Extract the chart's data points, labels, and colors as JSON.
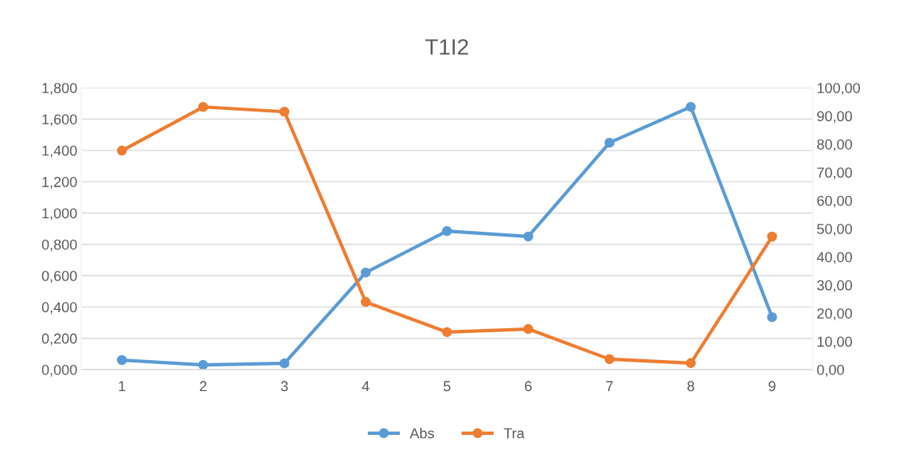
{
  "chart_data": {
    "type": "line",
    "title": "T1I2",
    "categories": [
      "1",
      "2",
      "3",
      "4",
      "5",
      "6",
      "7",
      "8",
      "9"
    ],
    "series": [
      {
        "name": "Abs",
        "color": "#5b9bd5",
        "values": [
          0.061,
          0.03,
          0.04,
          0.62,
          0.885,
          0.85,
          1.449,
          1.678,
          0.335
        ]
      },
      {
        "name": "Tra",
        "color": "#ed7d31",
        "axis": "y2",
        "values": [
          77.7,
          93.2,
          91.5,
          24.0,
          13.3,
          14.4,
          3.7,
          2.3,
          47.2
        ]
      }
    ],
    "ylim": [
      0,
      1.8
    ],
    "yticks": [
      {
        "value": 0,
        "label": "0,000"
      },
      {
        "value": 0.2,
        "label": "0,200"
      },
      {
        "value": 0.4,
        "label": "0,400"
      },
      {
        "value": 0.6,
        "label": "0,600"
      },
      {
        "value": 0.8,
        "label": "0,800"
      },
      {
        "value": 1.0,
        "label": "1,000"
      },
      {
        "value": 1.2,
        "label": "1,200"
      },
      {
        "value": 1.4,
        "label": "1,400"
      },
      {
        "value": 1.6,
        "label": "1,600"
      },
      {
        "value": 1.8,
        "label": "1,800"
      }
    ],
    "y2lim": [
      0,
      100
    ],
    "y2ticks": [
      {
        "value": 0,
        "label": "0,00"
      },
      {
        "value": 10,
        "label": "10,00"
      },
      {
        "value": 20,
        "label": "20,00"
      },
      {
        "value": 30,
        "label": "30,00"
      },
      {
        "value": 40,
        "label": "40,00"
      },
      {
        "value": 50,
        "label": "50,00"
      },
      {
        "value": 60,
        "label": "60,00"
      },
      {
        "value": 70,
        "label": "70,00"
      },
      {
        "value": 80,
        "label": "80,00"
      },
      {
        "value": 90,
        "label": "90,00"
      },
      {
        "value": 100,
        "label": "100,00"
      }
    ],
    "grid": "y",
    "legend": "bottom",
    "marker": "circle",
    "line_style": "solid"
  }
}
